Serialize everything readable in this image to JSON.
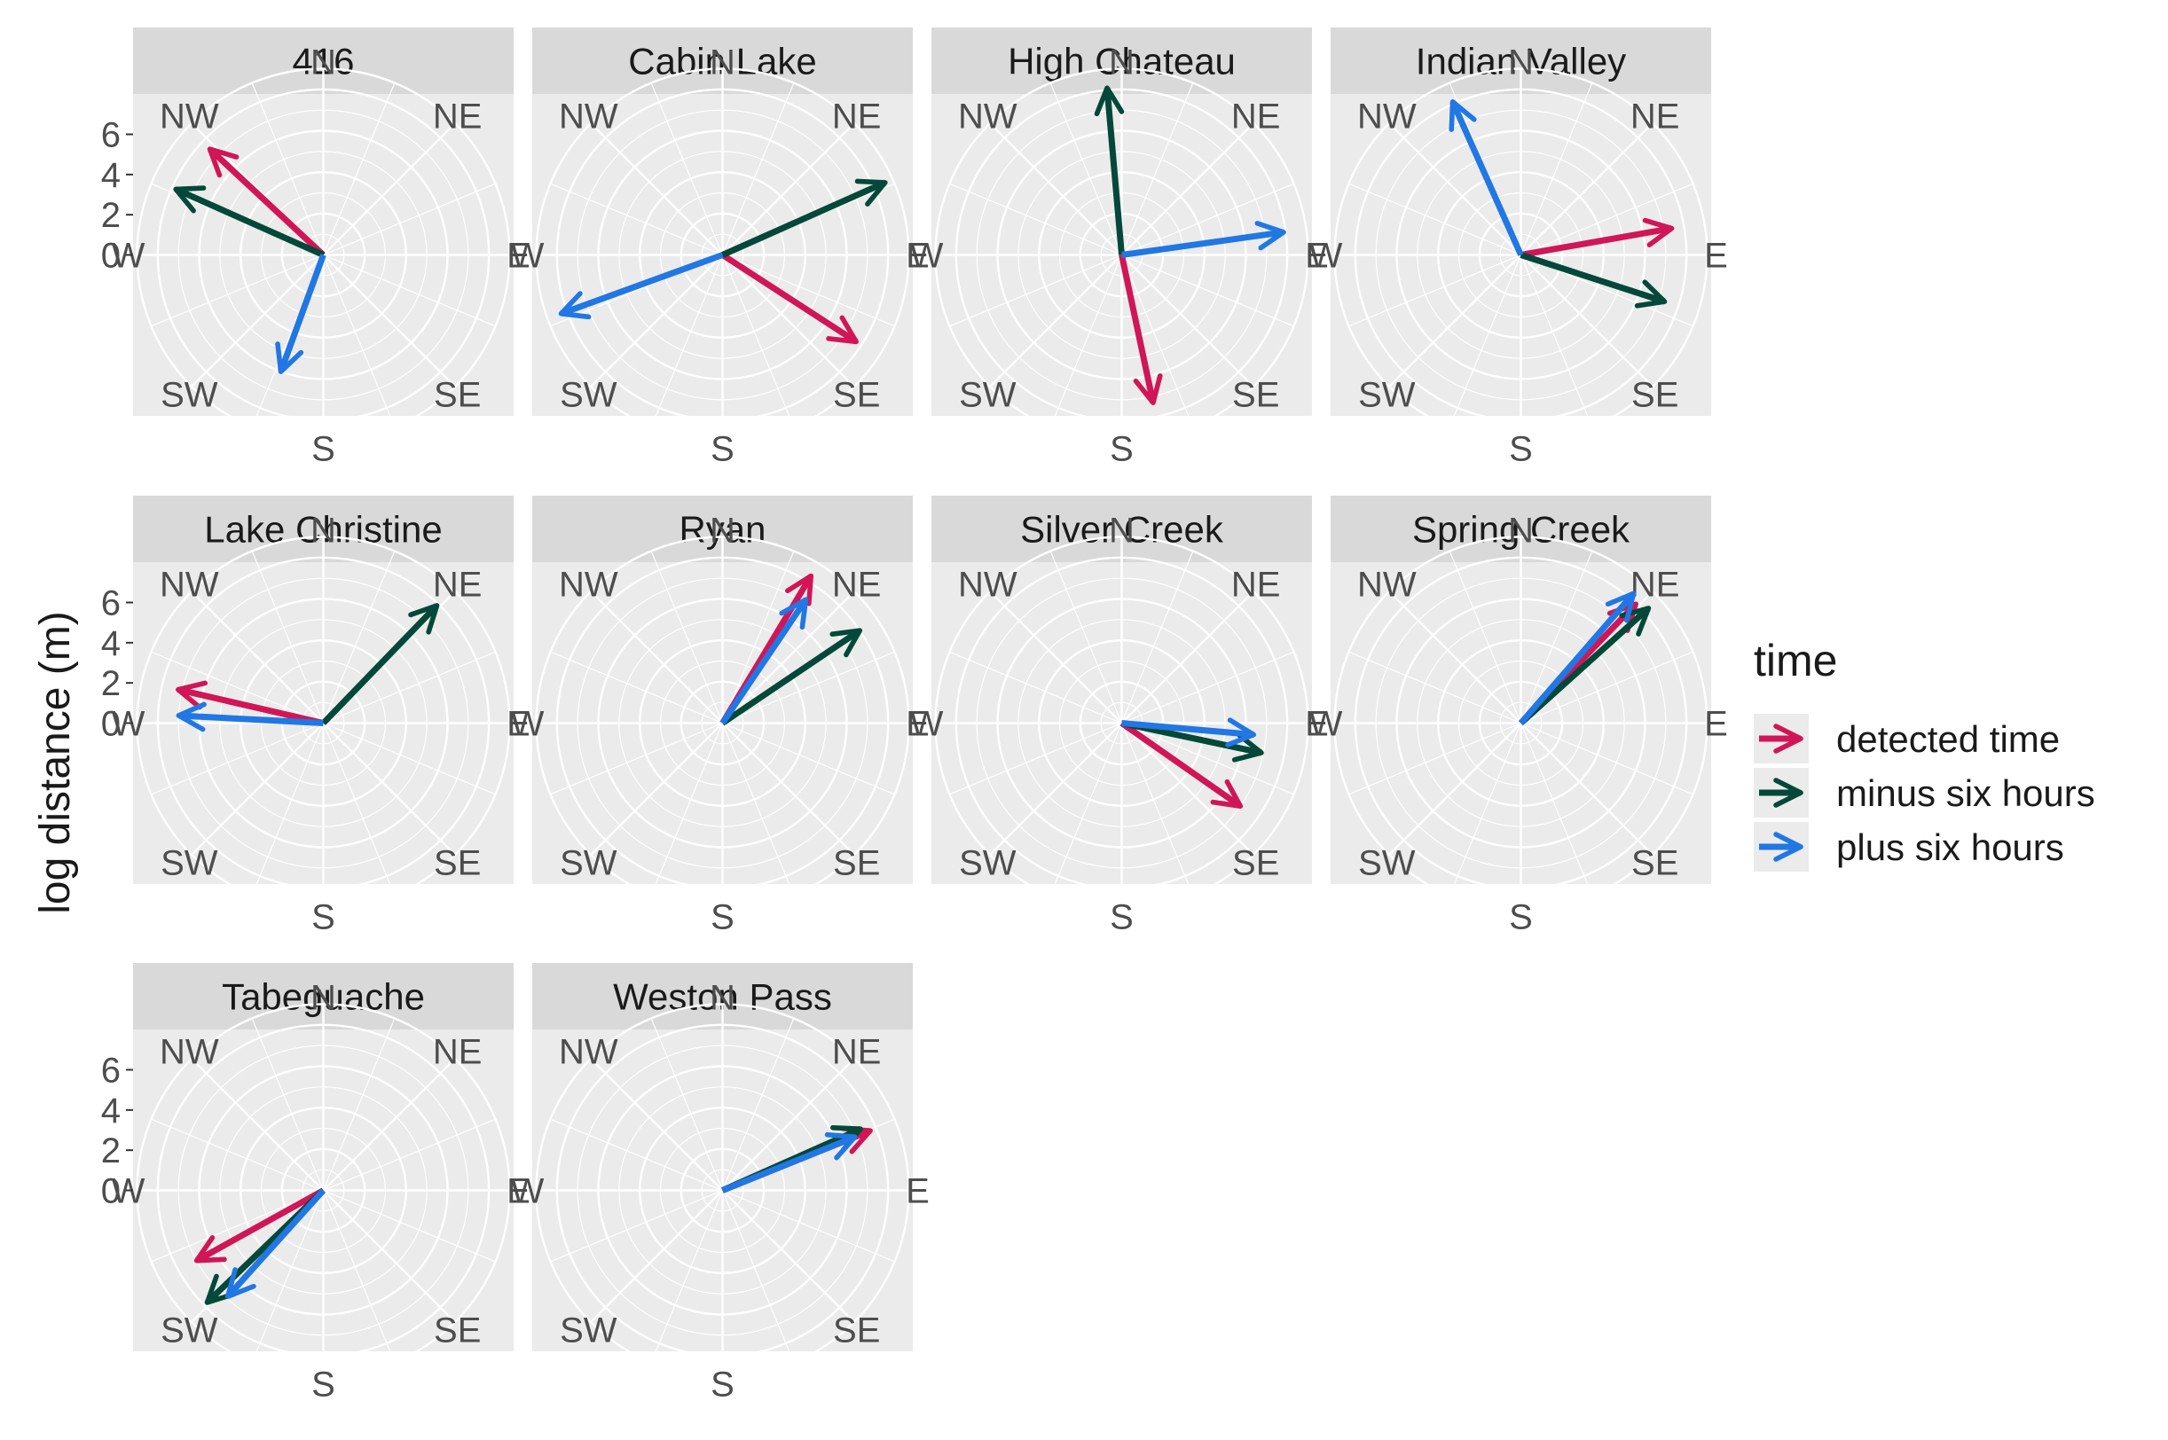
{
  "chart_data": {
    "type": "faceted-polar-vector",
    "ylabel": "log distance (m)",
    "r_ticks": [
      0,
      2,
      4,
      6
    ],
    "directions": [
      "N",
      "NE",
      "E",
      "SE",
      "S",
      "SW",
      "W",
      "NW"
    ],
    "legend": {
      "title": "time",
      "position": "right",
      "entries": [
        {
          "key": "detected",
          "label": "detected time"
        },
        {
          "key": "minus",
          "label": "minus six hours"
        },
        {
          "key": "plus",
          "label": "plus six hours"
        }
      ]
    },
    "colors": {
      "detected": "#D01657",
      "minus": "#034838",
      "plus": "#2177E3",
      "panel_bg": "#EBEBEB",
      "strip_bg": "#D9D9D9",
      "grid": "#FFFFFF",
      "text": "#4D4D4D"
    },
    "facets": [
      {
        "name": "416",
        "vectors": {
          "detected": {
            "bearing": 313,
            "r": 7.5
          },
          "minus": {
            "bearing": 294,
            "r": 7.8
          },
          "plus": {
            "bearing": 200,
            "r": 6.0
          }
        }
      },
      {
        "name": "Cabin Lake",
        "vectors": {
          "detected": {
            "bearing": 123,
            "r": 7.7
          },
          "minus": {
            "bearing": 66,
            "r": 8.6
          },
          "plus": {
            "bearing": 250,
            "r": 8.3
          }
        }
      },
      {
        "name": "High Chateau",
        "vectors": {
          "detected": {
            "bearing": 168,
            "r": 7.3
          },
          "minus": {
            "bearing": 355,
            "r": 8.1
          },
          "plus": {
            "bearing": 82,
            "r": 7.9
          }
        }
      },
      {
        "name": "Indian Valley",
        "vectors": {
          "detected": {
            "bearing": 80,
            "r": 7.4
          },
          "minus": {
            "bearing": 108,
            "r": 7.3
          },
          "plus": {
            "bearing": 336,
            "r": 8.1
          }
        }
      },
      {
        "name": "Lake Christine",
        "vectors": {
          "detected": {
            "bearing": 283,
            "r": 7.2
          },
          "minus": {
            "bearing": 44,
            "r": 7.9
          },
          "plus": {
            "bearing": 273,
            "r": 7.0
          }
        }
      },
      {
        "name": "Ryan",
        "vectors": {
          "detected": {
            "bearing": 31,
            "r": 8.3
          },
          "minus": {
            "bearing": 56,
            "r": 8.0
          },
          "plus": {
            "bearing": 34,
            "r": 7.2
          }
        }
      },
      {
        "name": "Silver Creek",
        "vectors": {
          "detected": {
            "bearing": 125,
            "r": 7.0
          },
          "minus": {
            "bearing": 102,
            "r": 6.9
          },
          "plus": {
            "bearing": 95,
            "r": 6.4
          }
        }
      },
      {
        "name": "Spring Creek",
        "vectors": {
          "detected": {
            "bearing": 44,
            "r": 8.0
          },
          "minus": {
            "bearing": 48,
            "r": 8.3
          },
          "plus": {
            "bearing": 41,
            "r": 8.3
          }
        }
      },
      {
        "name": "Tabeguache",
        "vectors": {
          "detected": {
            "bearing": 241,
            "r": 7.0
          },
          "minus": {
            "bearing": 226,
            "r": 7.8
          },
          "plus": {
            "bearing": 222,
            "r": 6.9
          }
        }
      },
      {
        "name": "Weston Pass",
        "vectors": {
          "detected": {
            "bearing": 68,
            "r": 7.7
          },
          "minus": {
            "bearing": 66,
            "r": 7.3
          },
          "plus": {
            "bearing": 68,
            "r": 6.9
          }
        }
      }
    ]
  }
}
